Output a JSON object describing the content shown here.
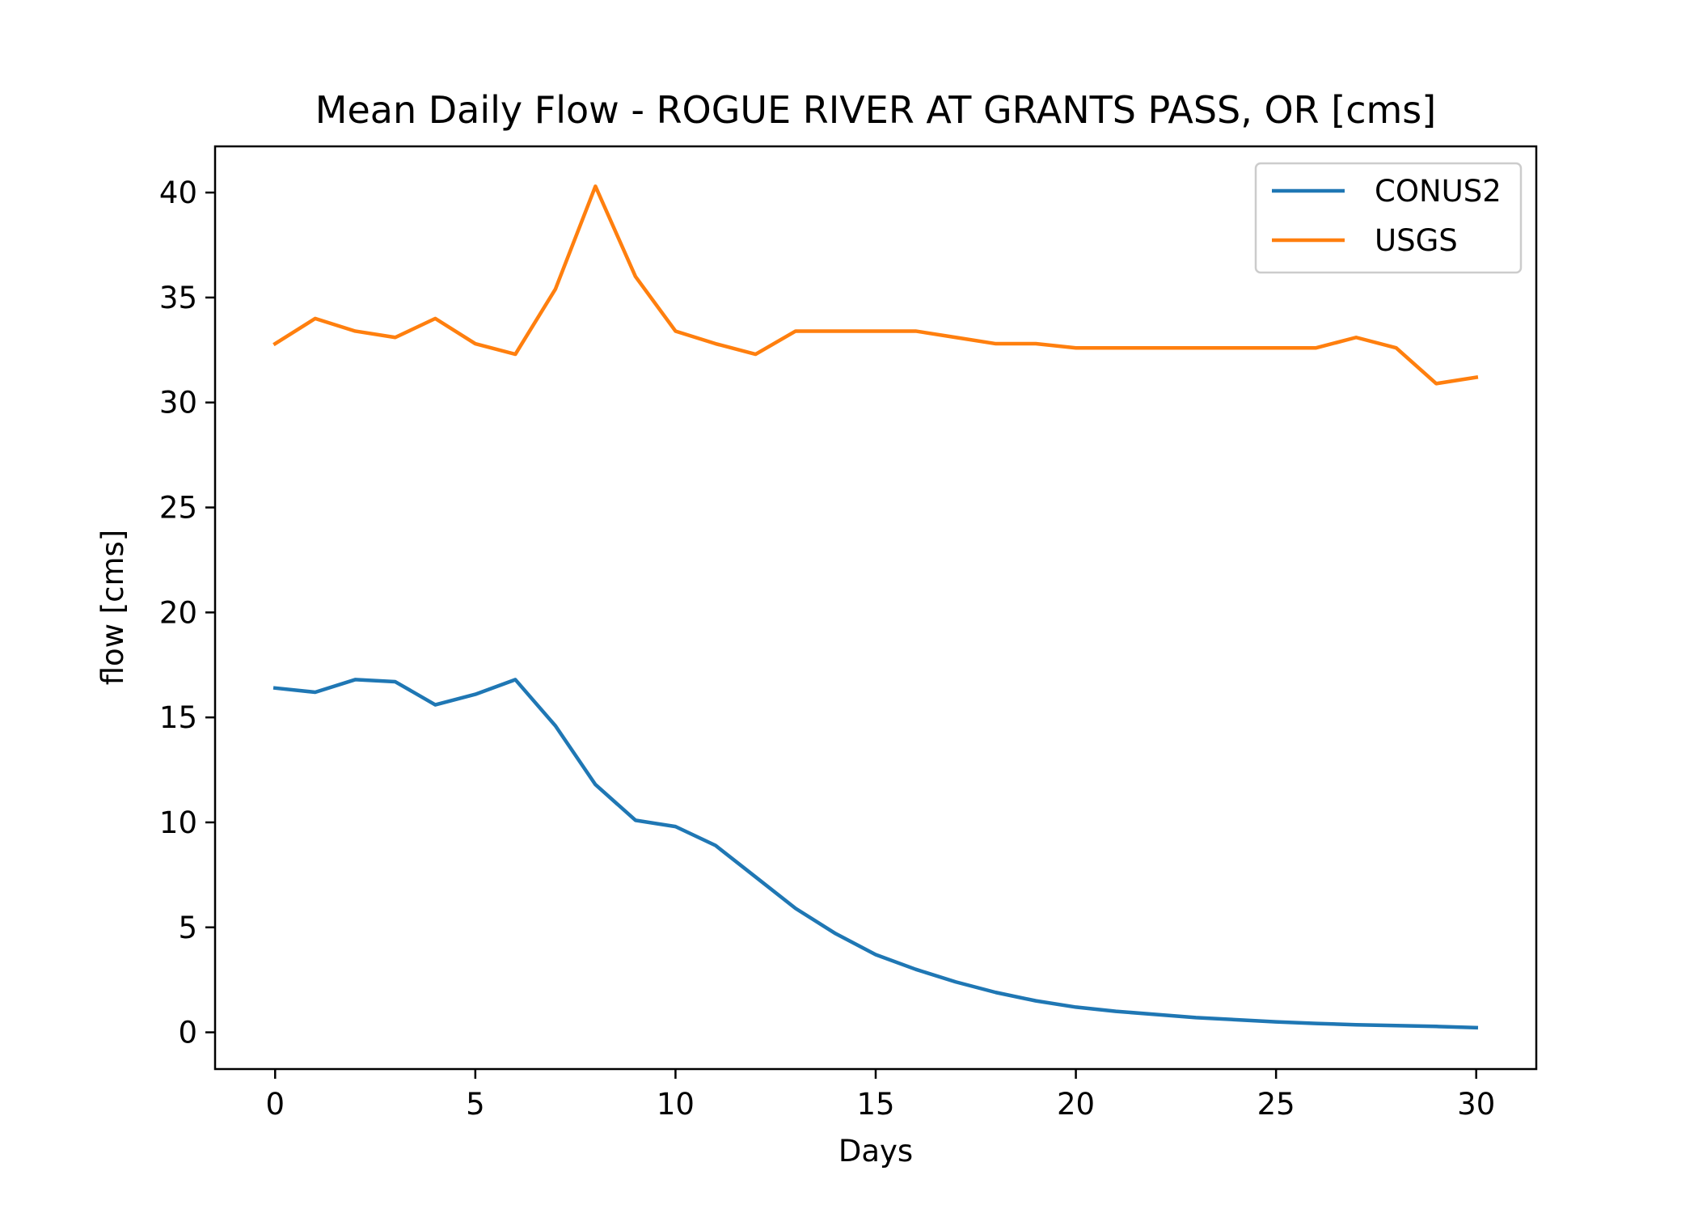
{
  "chart_data": {
    "type": "line",
    "title": "Mean Daily Flow - ROGUE RIVER AT GRANTS PASS, OR [cms]",
    "xlabel": "Days",
    "ylabel": "flow [cms]",
    "xlim": [
      -1.5,
      31.5
    ],
    "ylim": [
      -1.75,
      42.2
    ],
    "x_ticks": [
      0,
      5,
      10,
      15,
      20,
      25,
      30
    ],
    "y_ticks": [
      0,
      5,
      10,
      15,
      20,
      25,
      30,
      35,
      40
    ],
    "grid": false,
    "legend_position": "top-right",
    "x": [
      0,
      1,
      2,
      3,
      4,
      5,
      6,
      7,
      8,
      9,
      10,
      11,
      12,
      13,
      14,
      15,
      16,
      17,
      18,
      19,
      20,
      21,
      22,
      23,
      24,
      25,
      26,
      27,
      28,
      29,
      30
    ],
    "series": [
      {
        "name": "CONUS2",
        "color": "#1f77b4",
        "values": [
          16.4,
          16.2,
          16.8,
          16.7,
          15.6,
          16.1,
          16.8,
          14.6,
          11.8,
          10.1,
          9.8,
          8.9,
          7.4,
          5.9,
          4.7,
          3.7,
          3.0,
          2.4,
          1.9,
          1.5,
          1.2,
          1.0,
          0.85,
          0.7,
          0.6,
          0.5,
          0.42,
          0.36,
          0.32,
          0.28,
          0.22
        ]
      },
      {
        "name": "USGS",
        "color": "#ff7f0e",
        "values": [
          32.8,
          34.0,
          33.4,
          33.1,
          34.0,
          32.8,
          32.3,
          35.4,
          40.3,
          36.0,
          33.4,
          32.8,
          32.3,
          33.4,
          33.4,
          33.4,
          33.4,
          33.1,
          32.8,
          32.8,
          32.6,
          32.6,
          32.6,
          32.6,
          32.6,
          32.6,
          32.6,
          33.1,
          32.6,
          30.9,
          31.2
        ]
      }
    ]
  }
}
